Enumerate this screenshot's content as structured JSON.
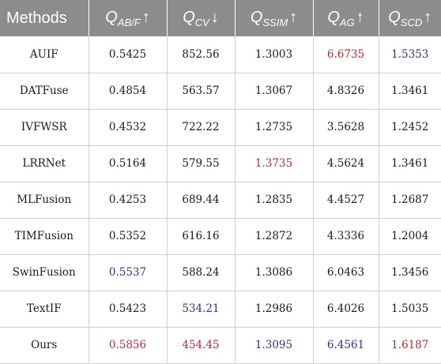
{
  "table": {
    "headers": {
      "methods": "Methods",
      "metrics": [
        {
          "main": "Q",
          "sub": "AB/F",
          "arrow": "↑"
        },
        {
          "main": "Q",
          "sub": "CV",
          "arrow": "↓"
        },
        {
          "main": "Q",
          "sub": "SSIM",
          "arrow": "↑"
        },
        {
          "main": "Q",
          "sub": "AG",
          "arrow": "↑"
        },
        {
          "main": "Q",
          "sub": "SCD",
          "arrow": "↑"
        }
      ]
    },
    "colors": {
      "best": "#c0272d",
      "second": "#2e3192",
      "header_bg": "#8a8c8e"
    },
    "rows": [
      {
        "method": "AUIF",
        "values": [
          "0.5425",
          "852.56",
          "1.3003",
          "6.6735",
          "1.5353"
        ],
        "marks": [
          "",
          "",
          "",
          "best",
          "second"
        ]
      },
      {
        "method": "DATFuse",
        "values": [
          "0.4854",
          "563.57",
          "1.3067",
          "4.8326",
          "1.3461"
        ],
        "marks": [
          "",
          "",
          "",
          "",
          ""
        ]
      },
      {
        "method": "IVFWSR",
        "values": [
          "0.4532",
          "722.22",
          "1.2735",
          "3.5628",
          "1.2452"
        ],
        "marks": [
          "",
          "",
          "",
          "",
          ""
        ]
      },
      {
        "method": "LRRNet",
        "values": [
          "0.5164",
          "579.55",
          "1.3735",
          "4.5624",
          "1.3461"
        ],
        "marks": [
          "",
          "",
          "best",
          "",
          ""
        ]
      },
      {
        "method": "MLFusion",
        "values": [
          "0.4253",
          "689.44",
          "1.2835",
          "4.4527",
          "1.2687"
        ],
        "marks": [
          "",
          "",
          "",
          "",
          ""
        ]
      },
      {
        "method": "TIMFusion",
        "values": [
          "0.5352",
          "616.16",
          "1.2872",
          "4.3336",
          "1.2004"
        ],
        "marks": [
          "",
          "",
          "",
          "",
          ""
        ]
      },
      {
        "method": "SwinFusion",
        "values": [
          "0.5537",
          "588.24",
          "1.3086",
          "6.0463",
          "1.3456"
        ],
        "marks": [
          "second",
          "",
          "",
          "",
          ""
        ]
      },
      {
        "method": "TextIF",
        "values": [
          "0.5423",
          "534.21",
          "1.2986",
          "6.4026",
          "1.5035"
        ],
        "marks": [
          "",
          "second",
          "",
          "",
          ""
        ]
      },
      {
        "method": "Ours",
        "values": [
          "0.5856",
          "454.45",
          "1.3095",
          "6.4561",
          "1.6187"
        ],
        "marks": [
          "best",
          "best",
          "second",
          "second",
          "best"
        ]
      }
    ]
  }
}
